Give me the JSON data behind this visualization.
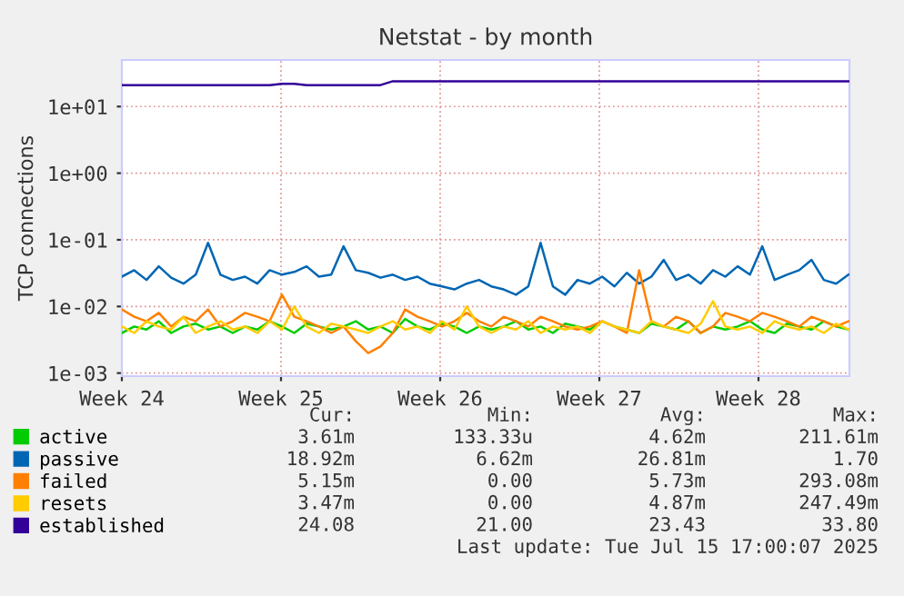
{
  "chart_data": {
    "type": "line",
    "title": "Netstat - by month",
    "ylabel": "TCP connections",
    "x": [
      "2025-06-09T00:00",
      "2025-06-09T13:00",
      "2025-06-10T02:00",
      "2025-06-10T15:00",
      "2025-06-11T04:00",
      "2025-06-11T17:00",
      "2025-06-12T06:00",
      "2025-06-12T19:00",
      "2025-06-13T08:00",
      "2025-06-13T21:00",
      "2025-06-14T10:00",
      "2025-06-14T23:00",
      "2025-06-15T12:00",
      "2025-06-16T01:00",
      "2025-06-16T14:00",
      "2025-06-17T03:00",
      "2025-06-17T16:00",
      "2025-06-18T05:00",
      "2025-06-18T18:00",
      "2025-06-19T07:00",
      "2025-06-19T20:00",
      "2025-06-20T09:00",
      "2025-06-20T22:00",
      "2025-06-21T11:00",
      "2025-06-22T00:00",
      "2025-06-22T13:00",
      "2025-06-23T02:00",
      "2025-06-23T15:00",
      "2025-06-24T04:00",
      "2025-06-24T17:00",
      "2025-06-25T06:00",
      "2025-06-25T19:00",
      "2025-06-26T08:00",
      "2025-06-26T21:00",
      "2025-06-27T10:00",
      "2025-06-27T23:00",
      "2025-06-28T12:00",
      "2025-06-29T01:00",
      "2025-06-29T14:00",
      "2025-06-30T03:00",
      "2025-06-30T16:00",
      "2025-07-01T05:00",
      "2025-07-01T18:00",
      "2025-07-02T07:00",
      "2025-07-02T20:00",
      "2025-07-03T09:00",
      "2025-07-03T22:00",
      "2025-07-04T11:00",
      "2025-07-05T00:00",
      "2025-07-05T13:00",
      "2025-07-06T02:00",
      "2025-07-06T15:00",
      "2025-07-07T04:00",
      "2025-07-07T17:00",
      "2025-07-08T06:00",
      "2025-07-08T19:00",
      "2025-07-09T08:00",
      "2025-07-09T21:00",
      "2025-07-10T10:00",
      "2025-07-10T23:00"
    ],
    "series": [
      {
        "name": "active",
        "color": "#00cc00",
        "values": [
          0.004,
          0.005,
          0.0045,
          0.006,
          0.004,
          0.005,
          0.0055,
          0.0045,
          0.005,
          0.004,
          0.005,
          0.0045,
          0.006,
          0.005,
          0.004,
          0.0055,
          0.005,
          0.0045,
          0.005,
          0.006,
          0.0045,
          0.005,
          0.004,
          0.0065,
          0.005,
          0.0045,
          0.0055,
          0.005,
          0.004,
          0.005,
          0.0045,
          0.005,
          0.006,
          0.0045,
          0.005,
          0.004,
          0.0055,
          0.005,
          0.0045,
          0.006,
          0.005,
          0.0045,
          0.004,
          0.0055,
          0.005,
          0.0045,
          0.006,
          0.004,
          0.005,
          0.0045,
          0.005,
          0.006,
          0.0045,
          0.004,
          0.0055,
          0.005,
          0.0045,
          0.006,
          0.005,
          0.0045
        ]
      },
      {
        "name": "passive",
        "color": "#0066b3",
        "values": [
          0.028,
          0.035,
          0.025,
          0.04,
          0.027,
          0.022,
          0.03,
          0.09,
          0.03,
          0.025,
          0.028,
          0.022,
          0.035,
          0.03,
          0.033,
          0.04,
          0.028,
          0.03,
          0.08,
          0.035,
          0.032,
          0.027,
          0.03,
          0.025,
          0.028,
          0.022,
          0.02,
          0.018,
          0.022,
          0.025,
          0.02,
          0.018,
          0.015,
          0.02,
          0.09,
          0.02,
          0.015,
          0.025,
          0.022,
          0.028,
          0.02,
          0.032,
          0.022,
          0.028,
          0.05,
          0.025,
          0.03,
          0.022,
          0.035,
          0.028,
          0.04,
          0.03,
          0.08,
          0.025,
          0.03,
          0.035,
          0.05,
          0.025,
          0.022,
          0.03
        ]
      },
      {
        "name": "failed",
        "color": "#ff8000",
        "values": [
          0.009,
          0.007,
          0.006,
          0.008,
          0.005,
          0.007,
          0.006,
          0.009,
          0.005,
          0.006,
          0.008,
          0.007,
          0.006,
          0.015,
          0.007,
          0.006,
          0.005,
          0.004,
          0.005,
          0.003,
          0.002,
          0.0025,
          0.004,
          0.009,
          0.007,
          0.006,
          0.005,
          0.006,
          0.008,
          0.006,
          0.005,
          0.007,
          0.006,
          0.005,
          0.007,
          0.006,
          0.005,
          0.0045,
          0.005,
          0.006,
          0.005,
          0.004,
          0.035,
          0.006,
          0.005,
          0.007,
          0.006,
          0.004,
          0.005,
          0.008,
          0.007,
          0.006,
          0.008,
          0.007,
          0.006,
          0.005,
          0.007,
          0.006,
          0.005,
          0.006
        ]
      },
      {
        "name": "resets",
        "color": "#ffcc00",
        "values": [
          0.005,
          0.004,
          0.006,
          0.005,
          0.0045,
          0.007,
          0.004,
          0.005,
          0.006,
          0.0045,
          0.005,
          0.004,
          0.006,
          0.0045,
          0.01,
          0.005,
          0.004,
          0.0055,
          0.005,
          0.0045,
          0.004,
          0.005,
          0.006,
          0.0045,
          0.005,
          0.004,
          0.006,
          0.0045,
          0.01,
          0.005,
          0.004,
          0.005,
          0.0045,
          0.006,
          0.004,
          0.005,
          0.0045,
          0.005,
          0.004,
          0.006,
          0.005,
          0.0045,
          0.004,
          0.006,
          0.005,
          0.0045,
          0.004,
          0.0055,
          0.012,
          0.005,
          0.0045,
          0.005,
          0.004,
          0.006,
          0.005,
          0.0045,
          0.005,
          0.004,
          0.0055,
          0.0045
        ]
      },
      {
        "name": "established",
        "color": "#330099",
        "values": [
          21,
          21,
          21,
          21,
          21,
          21,
          21,
          21,
          21,
          21,
          21,
          21,
          21,
          22,
          22,
          21,
          21,
          21,
          21,
          21,
          21,
          21,
          24,
          24,
          24,
          24,
          24,
          24,
          24,
          24,
          24,
          24,
          24,
          24,
          24,
          24,
          24,
          24,
          24,
          24,
          24,
          24,
          24,
          24,
          24,
          24,
          24,
          24,
          24,
          24,
          24,
          24,
          24,
          24,
          24,
          24,
          24,
          24,
          24,
          24
        ]
      }
    ],
    "log": "y",
    "xlim": [
      "2025-06-09T00:00",
      "2025-07-11T00:00"
    ],
    "ylim": [
      0.0009,
      50
    ],
    "xticks": [
      {
        "value": "2025-06-09",
        "label": "Week 24"
      },
      {
        "value": "2025-06-16",
        "label": "Week 25"
      },
      {
        "value": "2025-06-23",
        "label": "Week 26"
      },
      {
        "value": "2025-06-30",
        "label": "Week 27"
      },
      {
        "value": "2025-07-07",
        "label": "Week 28"
      }
    ],
    "yticks": [
      {
        "value": 0.001,
        "label": "1e-03"
      },
      {
        "value": 0.01,
        "label": "1e-02"
      },
      {
        "value": 0.1,
        "label": "1e-01"
      },
      {
        "value": 1,
        "label": "1e+00"
      },
      {
        "value": 10,
        "label": "1e+01"
      }
    ],
    "grid": true,
    "legend": "bottom",
    "marker": "none",
    "line_style": "solid",
    "annotations": [
      "Cur:",
      "Min:",
      "Avg:",
      "Max:",
      "3.61m",
      "133.33u",
      "4.62m",
      "211.61m",
      "18.92m",
      "6.62m",
      "26.81m",
      "1.70",
      "5.15m",
      "0.00",
      "5.73m",
      "293.08m",
      "3.47m",
      "0.00",
      "4.87m",
      "247.49m",
      "24.08",
      "21.00",
      "23.43",
      "33.80",
      "Last update: Tue Jul 15 17:00:07 2025"
    ]
  }
}
